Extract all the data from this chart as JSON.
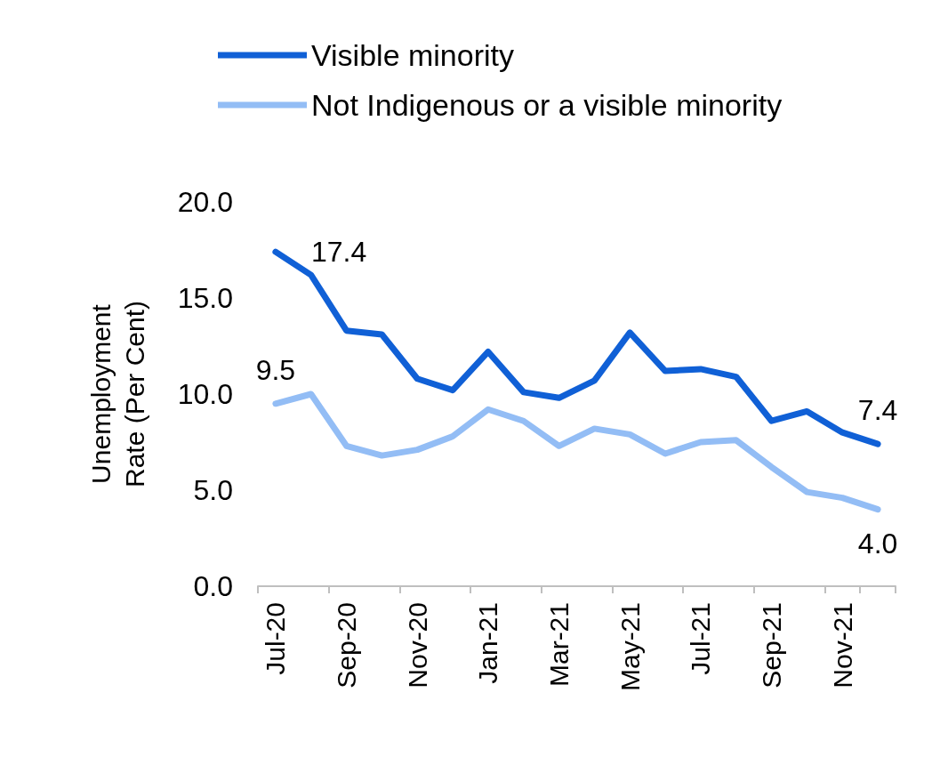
{
  "chart_data": {
    "type": "line",
    "ylabel": "Unemployment Rate (Per Cent)",
    "categories": [
      "Jul-20",
      null,
      "Sep-20",
      null,
      "Nov-20",
      null,
      "Jan-21",
      null,
      "Mar-21",
      null,
      "May-21",
      null,
      "Jul-21",
      null,
      "Sep-21",
      null,
      "Nov-21",
      null
    ],
    "series": [
      {
        "name": "Visible minority",
        "color": "#1060d6",
        "values": [
          17.4,
          16.2,
          13.3,
          13.1,
          10.8,
          10.2,
          12.2,
          10.1,
          9.8,
          10.7,
          13.2,
          11.2,
          11.3,
          10.9,
          8.6,
          9.1,
          8.0,
          7.4
        ],
        "value_labels": [
          "17.4",
          null,
          null,
          null,
          null,
          null,
          null,
          null,
          null,
          null,
          null,
          null,
          null,
          null,
          null,
          null,
          null,
          "7.4"
        ]
      },
      {
        "name": "Not Indigenous or a visible minority",
        "color": "#93bdf5",
        "values": [
          9.5,
          10.0,
          7.3,
          6.8,
          7.1,
          7.8,
          9.2,
          8.6,
          7.3,
          8.2,
          7.9,
          6.9,
          7.5,
          7.6,
          6.2,
          4.9,
          4.6,
          4.0
        ],
        "value_labels": [
          "9.5",
          null,
          null,
          null,
          null,
          null,
          null,
          null,
          null,
          null,
          null,
          null,
          null,
          null,
          null,
          null,
          null,
          "4.0"
        ]
      }
    ],
    "ylim": [
      0,
      20
    ],
    "yticks": [
      {
        "value": 0,
        "label": "0.0"
      },
      {
        "value": 5,
        "label": "5.0"
      },
      {
        "value": 10,
        "label": "10.0"
      },
      {
        "value": 15,
        "label": "15.0"
      },
      {
        "value": 20,
        "label": "20.0"
      }
    ],
    "grid": false,
    "legend": "top left",
    "marker": "none",
    "line_style": "solid"
  }
}
